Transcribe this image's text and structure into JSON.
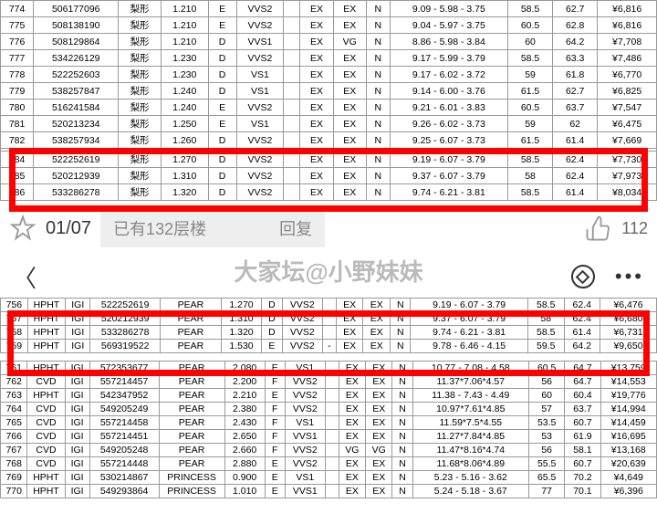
{
  "topTable": [
    [
      "774",
      "506177096",
      "梨形",
      "1.210",
      "E",
      "VVS2",
      "",
      "EX",
      "EX",
      "N",
      "9.09 - 5.98 - 3.75",
      "58.5",
      "62.7",
      "¥6,816"
    ],
    [
      "775",
      "508138190",
      "梨形",
      "1.210",
      "E",
      "VVS2",
      "",
      "EX",
      "EX",
      "N",
      "9.04 - 5.97 - 3.75",
      "60.5",
      "62.8",
      "¥6,816"
    ],
    [
      "776",
      "508129864",
      "梨形",
      "1.210",
      "D",
      "VVS1",
      "",
      "EX",
      "VG",
      "N",
      "8.86 - 5.98 - 3.84",
      "60",
      "64.2",
      "¥7,708"
    ],
    [
      "777",
      "534226129",
      "梨形",
      "1.230",
      "D",
      "VVS2",
      "",
      "EX",
      "EX",
      "N",
      "9.17 - 5.99 - 3.79",
      "58.5",
      "63.3",
      "¥7,486"
    ],
    [
      "778",
      "522252603",
      "梨形",
      "1.230",
      "D",
      "VS1",
      "",
      "EX",
      "EX",
      "N",
      "9.17 - 6.02 - 3.72",
      "59",
      "61.8",
      "¥6,770"
    ],
    [
      "779",
      "538257847",
      "梨形",
      "1.240",
      "D",
      "VS1",
      "",
      "EX",
      "EX",
      "N",
      "9.14 - 6.00 - 3.76",
      "61.5",
      "62.7",
      "¥6,825"
    ],
    [
      "780",
      "516241584",
      "梨形",
      "1.240",
      "E",
      "VVS2",
      "",
      "EX",
      "EX",
      "N",
      "9.21 - 6.01 - 3.83",
      "60.5",
      "63.7",
      "¥7,547"
    ],
    [
      "781",
      "520213234",
      "梨形",
      "1.250",
      "E",
      "VS1",
      "",
      "EX",
      "EX",
      "N",
      "9.26 - 6.02 - 3.73",
      "59",
      "62",
      "¥6,475"
    ],
    [
      "782",
      "538257934",
      "梨形",
      "1.260",
      "D",
      "VVS2",
      "",
      "EX",
      "EX",
      "N",
      "9.25 - 6.07 - 3.73",
      "61.5",
      "61.4",
      "¥7,669"
    ],
    [
      "",
      "",
      "",
      "",
      "",
      "",
      "",
      "",
      "",
      "",
      "",
      "",
      "",
      ""
    ],
    [
      "784",
      "522252619",
      "梨形",
      "1.270",
      "D",
      "VVS2",
      "",
      "EX",
      "EX",
      "N",
      "9.19 - 6.07 - 3.79",
      "58.5",
      "62.4",
      "¥7,730"
    ],
    [
      "785",
      "520212939",
      "梨形",
      "1.310",
      "D",
      "VVS2",
      "",
      "EX",
      "EX",
      "N",
      "9.37 - 6.07 - 3.79",
      "58",
      "62.4",
      "¥7,973"
    ],
    [
      "786",
      "533286278",
      "梨形",
      "1.320",
      "D",
      "VVS2",
      "",
      "EX",
      "EX",
      "N",
      "9.74 - 6.21 - 3.81",
      "58.5",
      "61.4",
      "¥8,034"
    ]
  ],
  "midbar": {
    "date": "01/07",
    "replyText": "已有132层楼",
    "replyAction": "回复",
    "likes": "112"
  },
  "watermark": "大家坛@小野妹妹",
  "bottomHighlight": [
    [
      "756",
      "HPHT",
      "IGI",
      "522252619",
      "PEAR",
      "1.270",
      "D",
      "VVS2",
      "",
      "EX",
      "EX",
      "N",
      "9.19 - 6.07 - 3.79",
      "58.5",
      "62.4",
      "¥6,476"
    ],
    [
      "757",
      "HPHT",
      "IGI",
      "520212939",
      "PEAR",
      "1.310",
      "D",
      "VVS2",
      "",
      "EX",
      "EX",
      "N",
      "9.37 - 6.07 - 3.79",
      "58",
      "62.4",
      "¥6,680"
    ],
    [
      "758",
      "HPHT",
      "IGI",
      "533286278",
      "PEAR",
      "1.320",
      "D",
      "VVS2",
      "",
      "EX",
      "EX",
      "N",
      "9.74 - 6.21 - 3.81",
      "58.5",
      "61.4",
      "¥6,731"
    ],
    [
      "759",
      "HPHT",
      "IGI",
      "569319522",
      "PEAR",
      "1.530",
      "E",
      "VVS2",
      "-",
      "EX",
      "EX",
      "N",
      "9.78 - 6.46 - 4.15",
      "59.5",
      "64.2",
      "¥9,650"
    ]
  ],
  "bottomTable": [
    [
      "761",
      "HPHT",
      "IGI",
      "572353677",
      "PEAR",
      "2.080",
      "E",
      "VS1",
      "",
      "EX",
      "EX",
      "N",
      "10.77 - 7.08 - 4.58",
      "60.5",
      "64.7",
      "¥13,759"
    ],
    [
      "762",
      "CVD",
      "IGI",
      "557214457",
      "PEAR",
      "2.200",
      "F",
      "VVS2",
      "",
      "EX",
      "EX",
      "N",
      "11.37*7.06*4.57",
      "56",
      "64.7",
      "¥14,553"
    ],
    [
      "763",
      "HPHT",
      "IGI",
      "542347952",
      "PEAR",
      "2.210",
      "E",
      "VVS2",
      "",
      "EX",
      "EX",
      "N",
      "11.38 - 7.43 - 4.49",
      "60",
      "60.4",
      "¥19,776"
    ],
    [
      "764",
      "CVD",
      "IGI",
      "549205249",
      "PEAR",
      "2.380",
      "F",
      "VVS2",
      "",
      "EX",
      "EX",
      "N",
      "10.97*7.61*4.85",
      "57",
      "63.7",
      "¥14,994"
    ],
    [
      "765",
      "CVD",
      "IGI",
      "557214458",
      "PEAR",
      "2.430",
      "F",
      "VS1",
      "",
      "EX",
      "EX",
      "N",
      "11.59*7.5*4.55",
      "53.5",
      "60.7",
      "¥14,459"
    ],
    [
      "766",
      "CVD",
      "IGI",
      "557214451",
      "PEAR",
      "2.650",
      "F",
      "VVS1",
      "",
      "EX",
      "EX",
      "N",
      "11.27*7.84*4.85",
      "53",
      "61.9",
      "¥16,695"
    ],
    [
      "767",
      "CVD",
      "IGI",
      "549205248",
      "PEAR",
      "2.660",
      "F",
      "VVS2",
      "",
      "VG",
      "VG",
      "N",
      "11.47*8.16*4.74",
      "56",
      "58.1",
      "¥13,168"
    ],
    [
      "768",
      "CVD",
      "IGI",
      "557214448",
      "PEAR",
      "2.880",
      "E",
      "VVS2",
      "",
      "EX",
      "EX",
      "N",
      "11.68*8.06*4.89",
      "55.5",
      "60.7",
      "¥20,639"
    ],
    [
      "769",
      "HPHT",
      "IGI",
      "530214867",
      "PRINCESS",
      "0.900",
      "E",
      "VS1",
      "",
      "EX",
      "EX",
      "N",
      "5.23 - 5.16 - 3.62",
      "65.5",
      "70.2",
      "¥4,649"
    ],
    [
      "770",
      "HPHT",
      "IGI",
      "549293864",
      "PRINCESS",
      "1.010",
      "E",
      "VVS1",
      "",
      "EX",
      "EX",
      "N",
      "5.24 - 5.18 - 3.67",
      "77",
      "70.1",
      "¥6,396"
    ]
  ],
  "styling": {
    "highlightColor": "#ff0000",
    "highlightBorderWidth": 7,
    "bgColor": "#ffffff",
    "borderColor": "#999999",
    "fontSize": 10.5
  }
}
